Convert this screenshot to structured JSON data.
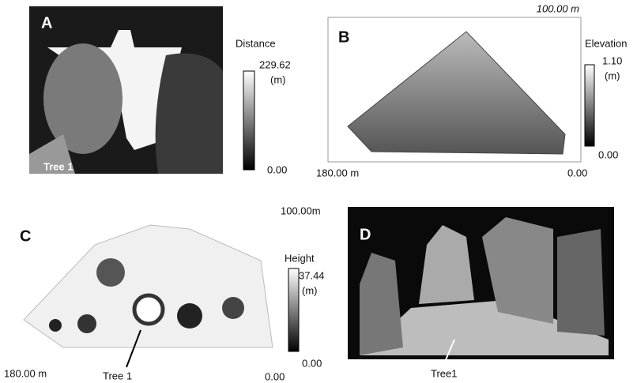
{
  "panels": [
    {
      "label": "A",
      "annotation": "Tree 1",
      "colorbar": {
        "title": "Distance",
        "max": "229.62",
        "unit": "(m)",
        "min": "0.00"
      }
    },
    {
      "label": "B",
      "top_extent": "100.00 m",
      "left_extent": "180.00 m",
      "right_extent": "0.00",
      "colorbar": {
        "title": "Elevation",
        "max": "1.10",
        "unit": "(m)",
        "min": "0.00"
      }
    },
    {
      "label": "C",
      "top_extent": "100.00m",
      "left_extent": "180.00 m",
      "right_extent": "0.00",
      "annotation": "Tree 1",
      "colorbar": {
        "title": "Height",
        "max": "37.44",
        "unit": "(m)",
        "min": "0.00"
      }
    },
    {
      "label": "D",
      "annotation": "Tree1"
    }
  ]
}
